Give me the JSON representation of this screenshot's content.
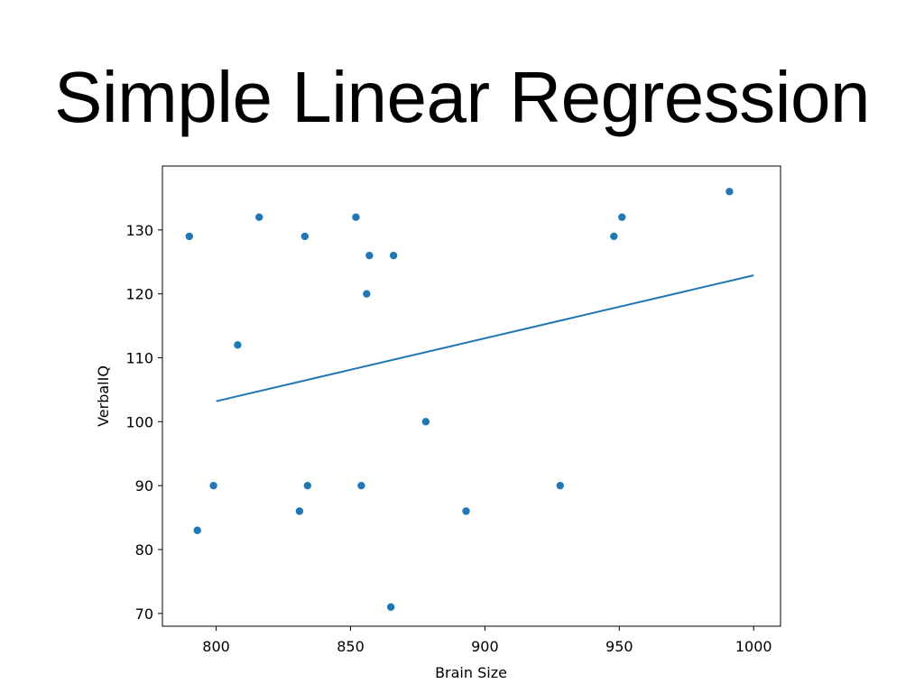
{
  "slide": {
    "title": "Simple Linear Regression"
  },
  "chart_data": {
    "type": "scatter",
    "title": "",
    "xlabel": "Brain Size",
    "ylabel": "VerbalIQ",
    "xlim": [
      780,
      1010
    ],
    "ylim": [
      68,
      140
    ],
    "xticks": [
      800,
      850,
      900,
      950,
      1000
    ],
    "yticks": [
      70,
      80,
      90,
      100,
      110,
      120,
      130
    ],
    "grid": false,
    "color": "#1f77b4",
    "points": [
      {
        "x": 790,
        "y": 129
      },
      {
        "x": 793,
        "y": 83
      },
      {
        "x": 799,
        "y": 90
      },
      {
        "x": 808,
        "y": 112
      },
      {
        "x": 816,
        "y": 132
      },
      {
        "x": 831,
        "y": 86
      },
      {
        "x": 833,
        "y": 129
      },
      {
        "x": 834,
        "y": 90
      },
      {
        "x": 852,
        "y": 132
      },
      {
        "x": 854,
        "y": 90
      },
      {
        "x": 856,
        "y": 120
      },
      {
        "x": 857,
        "y": 126
      },
      {
        "x": 865,
        "y": 71
      },
      {
        "x": 866,
        "y": 126
      },
      {
        "x": 878,
        "y": 100
      },
      {
        "x": 893,
        "y": 86
      },
      {
        "x": 928,
        "y": 90
      },
      {
        "x": 948,
        "y": 129
      },
      {
        "x": 951,
        "y": 132
      },
      {
        "x": 991,
        "y": 136
      }
    ],
    "regression_line": {
      "x": [
        800,
        1000
      ],
      "y": [
        103.2,
        122.9
      ]
    }
  }
}
